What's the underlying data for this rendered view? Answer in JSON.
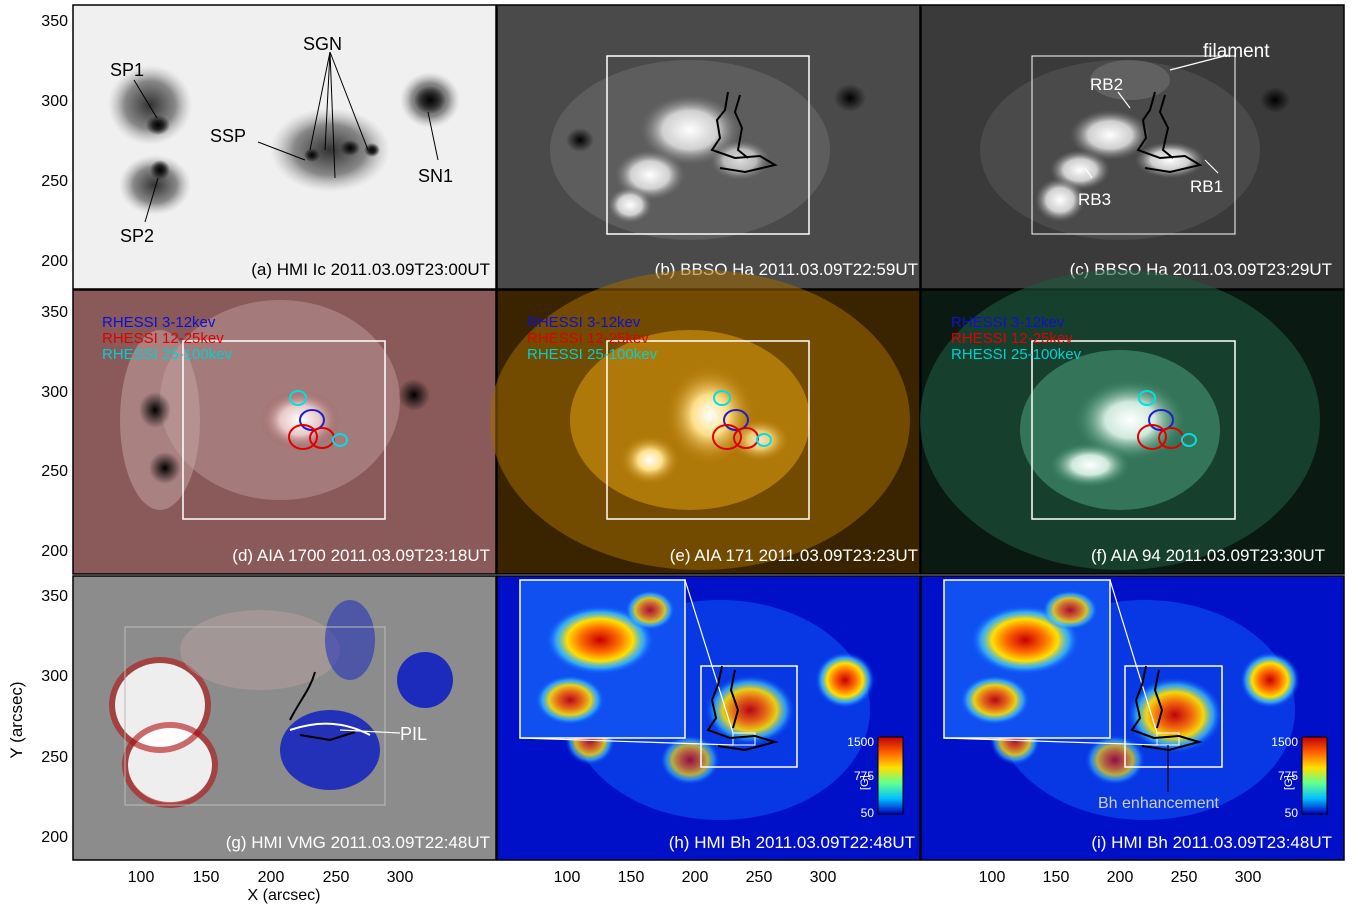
{
  "figure": {
    "y_axis_label": "Y (arcsec)",
    "x_axis_label": "X (arcsec)",
    "y_ticks": [
      "350",
      "300",
      "250",
      "200"
    ],
    "x_ticks": [
      "100",
      "150",
      "200",
      "250",
      "300"
    ],
    "legend": {
      "low": "RHESSI 3-12kev",
      "mid": "RHESSI 12-25kev",
      "high": "RHESSI 25-100kev"
    },
    "colorbar": {
      "ticks": [
        "1500",
        "775",
        "50"
      ],
      "unit": "[G]"
    },
    "panels": [
      {
        "id": "a",
        "title": "(a) HMI Ic 2011.03.09T23:00UT",
        "labels": {
          "sp1": "SP1",
          "sgn": "SGN",
          "ssp": "SSP",
          "sn1": "SN1",
          "sp2": "SP2"
        }
      },
      {
        "id": "b",
        "title": "(b) BBSO Ha 2011.03.09T22:59UT"
      },
      {
        "id": "c",
        "title": "(c) BBSO Ha 2011.03.09T23:29UT",
        "labels": {
          "filament": "filament",
          "rb1": "RB1",
          "rb2": "RB2",
          "rb3": "RB3"
        }
      },
      {
        "id": "d",
        "title": "(d) AIA 1700 2011.03.09T23:18UT"
      },
      {
        "id": "e",
        "title": "(e) AIA 171 2011.03.09T23:23UT"
      },
      {
        "id": "f",
        "title": "(f) AIA 94 2011.03.09T23:30UT"
      },
      {
        "id": "g",
        "title": "(g) HMI VMG 2011.03.09T22:48UT",
        "labels": {
          "pil": "PIL"
        }
      },
      {
        "id": "h",
        "title": "(h) HMI Bh 2011.03.09T22:48UT"
      },
      {
        "id": "i",
        "title": "(i) HMI Bh 2011.03.09T23:48UT",
        "labels": {
          "bh": "Bh enhancement"
        }
      }
    ]
  }
}
